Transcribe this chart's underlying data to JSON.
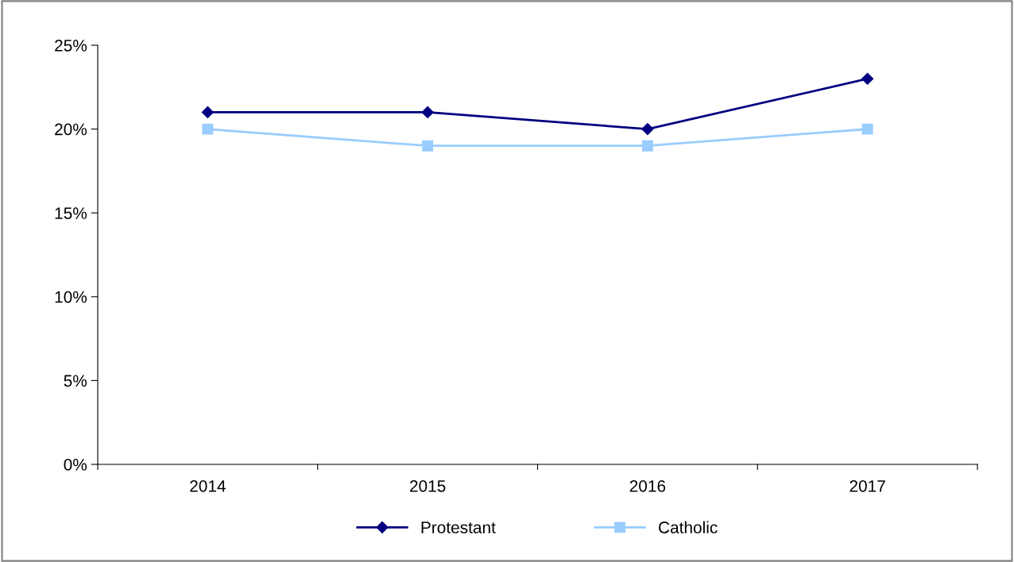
{
  "chart_data": {
    "type": "line",
    "categories": [
      "2014",
      "2015",
      "2016",
      "2017"
    ],
    "series": [
      {
        "name": "Protestant",
        "color": "#000080",
        "marker": "diamond",
        "values": [
          21,
          21,
          20,
          23
        ]
      },
      {
        "name": "Catholic",
        "color": "#99ccff",
        "marker": "square",
        "values": [
          20,
          19,
          19,
          20
        ]
      }
    ],
    "ylim": [
      0,
      25
    ],
    "yticks": [
      {
        "value": 0,
        "label": "0%"
      },
      {
        "value": 5,
        "label": "5%"
      },
      {
        "value": 10,
        "label": "10%"
      },
      {
        "value": 15,
        "label": "15%"
      },
      {
        "value": 20,
        "label": "20%"
      },
      {
        "value": 25,
        "label": "25%"
      }
    ],
    "grid": false,
    "legend": "bottom",
    "line_style": "solid"
  }
}
